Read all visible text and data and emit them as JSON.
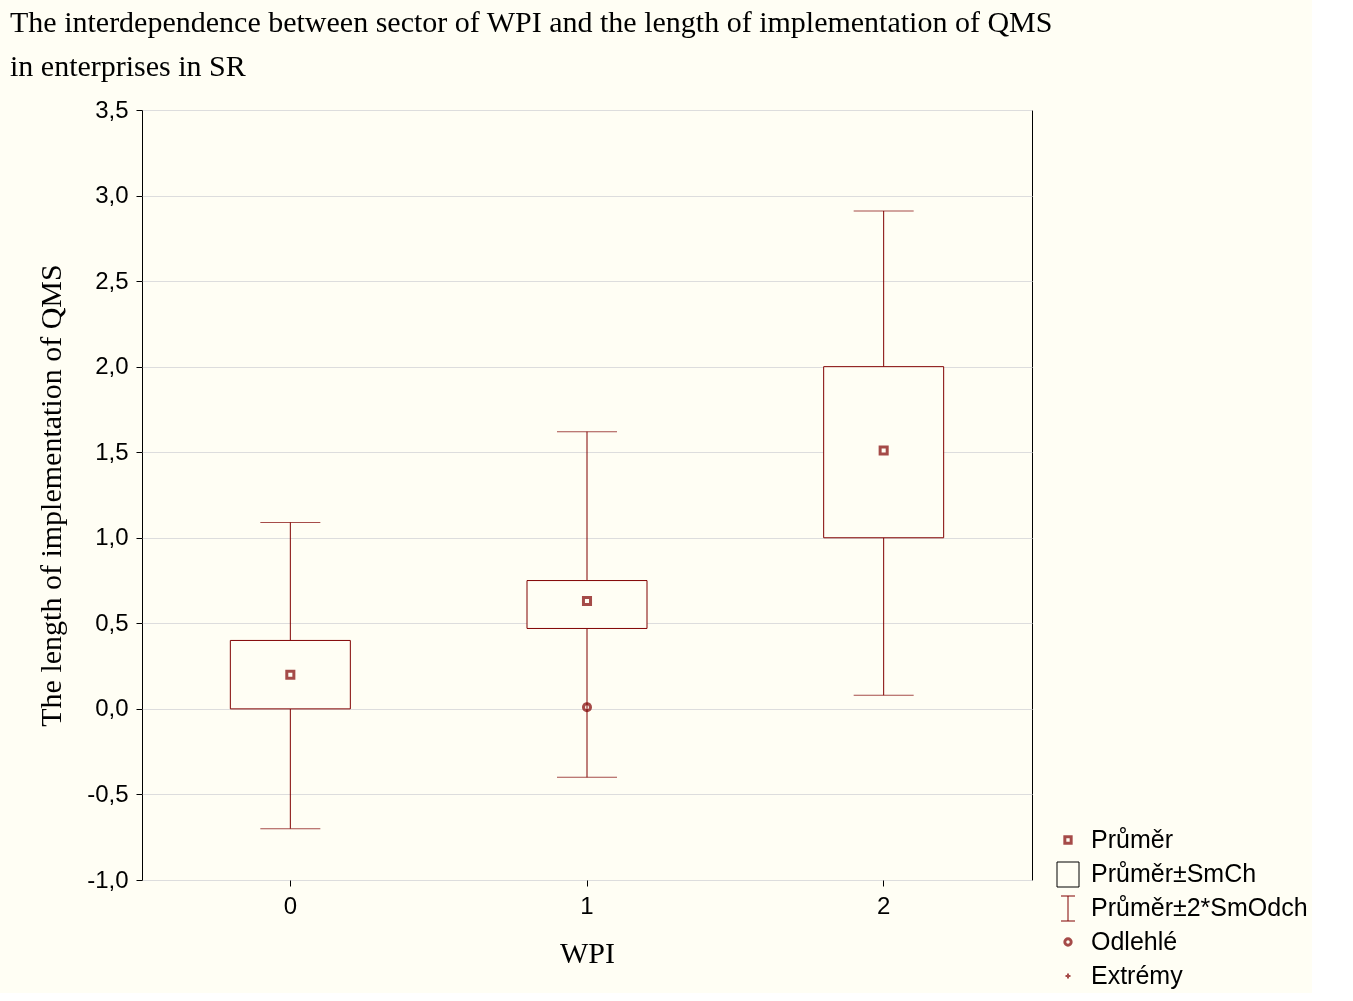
{
  "chart_data": {
    "type": "box",
    "title": "The interdependence between sector of WPI and the length of implementation of QMS in enterprises in SR",
    "xlabel": "WPI",
    "ylabel": "The length of implementation of QMS",
    "categories": [
      "0",
      "1",
      "2"
    ],
    "series": [
      {
        "color": "#800000",
        "boxes": [
          {
            "low": -0.7,
            "q1": 0.0,
            "median": 0.2,
            "q3": 0.4,
            "high": 1.09
          },
          {
            "low": -0.4,
            "q1": 0.47,
            "median": 0.63,
            "q3": 0.75,
            "high": 1.62,
            "outliers": [
              0.01
            ]
          },
          {
            "low": 0.08,
            "q1": 1.0,
            "median": 1.51,
            "q3": 2.0,
            "high": 2.91
          }
        ]
      }
    ],
    "ylim": [
      -1.0,
      3.5
    ],
    "yticks": [
      {
        "value": -1.0,
        "label": "-1,0"
      },
      {
        "value": -0.5,
        "label": "-0,5"
      },
      {
        "value": 0.0,
        "label": "0,0"
      },
      {
        "value": 0.5,
        "label": "0,5"
      },
      {
        "value": 1.0,
        "label": "1,0"
      },
      {
        "value": 1.5,
        "label": "1,5"
      },
      {
        "value": 2.0,
        "label": "2,0"
      },
      {
        "value": 2.5,
        "label": "2,5"
      },
      {
        "value": 3.0,
        "label": "3,0"
      },
      {
        "value": 3.5,
        "label": "3,5"
      }
    ],
    "grid": "y",
    "annotations": [
      "Průměr",
      "Průměr±SmCh",
      "Průměr±2*SmOdch",
      "Odlehlé",
      "Extrémy"
    ]
  }
}
